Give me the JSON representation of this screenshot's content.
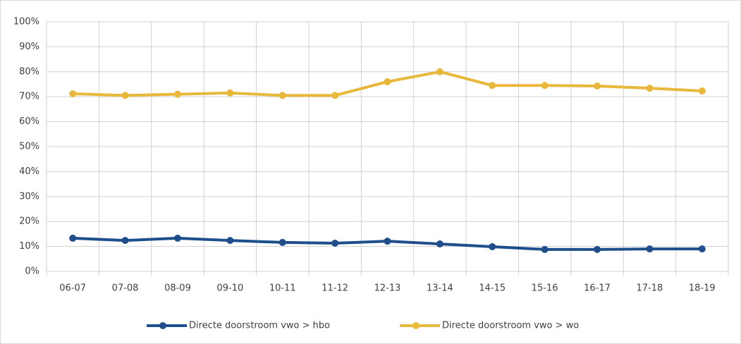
{
  "chart_data": {
    "type": "line",
    "categories": [
      "06-07",
      "07-08",
      "08-09",
      "09-10",
      "10-11",
      "11-12",
      "12-13",
      "13-14",
      "14-15",
      "15-16",
      "16-17",
      "17-18",
      "18-19"
    ],
    "series": [
      {
        "name": "Directe doorstroom vwo > hbo",
        "color": "#1f4e8c",
        "values": [
          13.3,
          12.4,
          13.3,
          12.4,
          11.6,
          11.3,
          12.1,
          11,
          9.9,
          8.8,
          8.8,
          9,
          9
        ]
      },
      {
        "name": "Directe doorstroom vwo > wo",
        "color": "#e8b83a",
        "values": [
          71.2,
          70.5,
          71,
          71.5,
          70.5,
          70.5,
          76,
          80,
          74.5,
          74.5,
          74.3,
          73.4,
          72.3
        ]
      }
    ],
    "ylim": [
      0,
      100
    ],
    "yticks": [
      {
        "value": 0,
        "label": "0%"
      },
      {
        "value": 10,
        "label": "10%"
      },
      {
        "value": 20,
        "label": "20%"
      },
      {
        "value": 30,
        "label": "30%"
      },
      {
        "value": 40,
        "label": "40%"
      },
      {
        "value": 50,
        "label": "50%"
      },
      {
        "value": 60,
        "label": "60%"
      },
      {
        "value": 70,
        "label": "70%"
      },
      {
        "value": 80,
        "label": "80%"
      },
      {
        "value": 90,
        "label": "90%"
      },
      {
        "value": 100,
        "label": "100%"
      }
    ],
    "grid": true,
    "legend": "bottom"
  }
}
